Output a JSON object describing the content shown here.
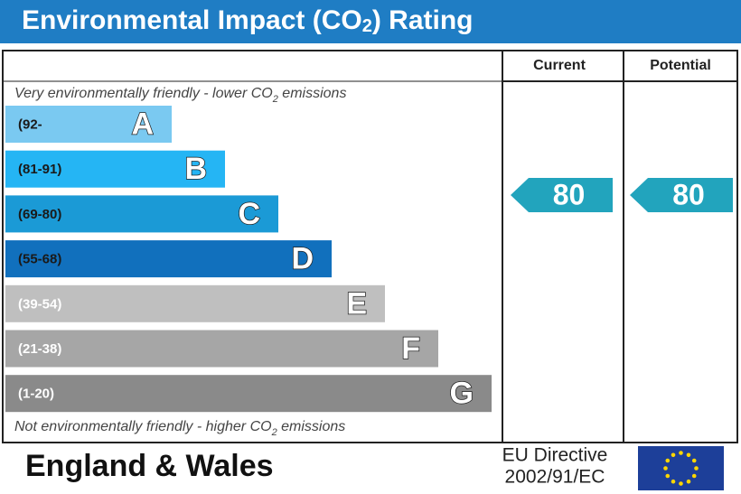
{
  "header": {
    "title_parts": [
      "Environmental Impact (CO",
      "2",
      ") Rating"
    ]
  },
  "columns": {
    "current": "Current",
    "potential": "Potential"
  },
  "top_note_parts": [
    "Very environmentally friendly - lower CO",
    "2",
    " emissions"
  ],
  "bottom_note_parts": [
    "Not environmentally friendly - higher CO",
    "2",
    " emissions"
  ],
  "bands": [
    {
      "range": "(92-",
      "letter": "A",
      "color": "#7ac9f1"
    },
    {
      "range": "(81-91)",
      "letter": "B",
      "color": "#25b5f4"
    },
    {
      "range": "(69-80)",
      "letter": "C",
      "color": "#1b9ad6"
    },
    {
      "range": "(55-68)",
      "letter": "D",
      "color": "#1170bd"
    },
    {
      "range": "(39-54)",
      "letter": "E",
      "color": "#bfbfbf"
    },
    {
      "range": "(21-38)",
      "letter": "F",
      "color": "#a6a6a6"
    },
    {
      "range": "(1-20)",
      "letter": "G",
      "color": "#8a8a8a"
    }
  ],
  "ratings": {
    "current": 80,
    "potential": 80,
    "color": "#22a4bd"
  },
  "footer": {
    "region": "England & Wales",
    "directive_lines": [
      "EU Directive",
      "2002/91/EC"
    ]
  }
}
